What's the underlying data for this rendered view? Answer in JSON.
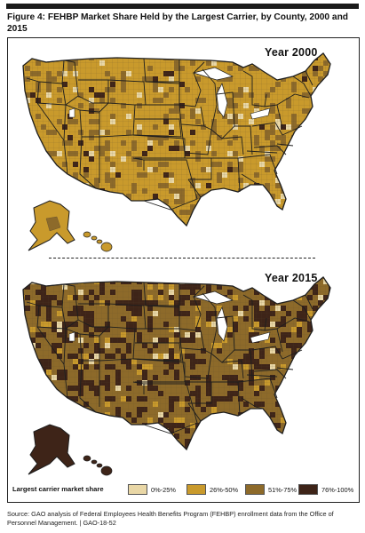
{
  "figure": {
    "title": "Figure 4: FEHBP Market Share Held by the Largest Carrier, by County, 2000 and 2015",
    "source": "Source: GAO analysis of Federal Employees Health Benefits Program (FEHBP) enrollment data from the Office of Personnel Management.  |  GAO-18-52"
  },
  "maps": [
    {
      "year_label": "Year 2000",
      "dominant_category": "26%-50%",
      "secondary_category": "51%-75%"
    },
    {
      "year_label": "Year 2015",
      "dominant_category": "51%-75%",
      "secondary_category": "76%-100%"
    }
  ],
  "legend": {
    "title": "Largest carrier market share",
    "items": [
      {
        "label": "0%-25%",
        "color": "#e9d7a6"
      },
      {
        "label": "26%-50%",
        "color": "#c99a2c"
      },
      {
        "label": "51%-75%",
        "color": "#8d6a2a"
      },
      {
        "label": "76%-100%",
        "color": "#3e2418"
      }
    ]
  },
  "colors": {
    "state_border": "#1e1e1e",
    "county_line": "#5a4a30"
  }
}
